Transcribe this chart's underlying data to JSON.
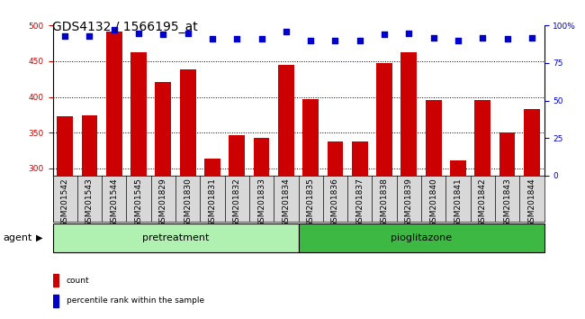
{
  "title": "GDS4132 / 1566195_at",
  "samples": [
    "GSM201542",
    "GSM201543",
    "GSM201544",
    "GSM201545",
    "GSM201829",
    "GSM201830",
    "GSM201831",
    "GSM201832",
    "GSM201833",
    "GSM201834",
    "GSM201835",
    "GSM201836",
    "GSM201837",
    "GSM201838",
    "GSM201839",
    "GSM201840",
    "GSM201841",
    "GSM201842",
    "GSM201843",
    "GSM201844"
  ],
  "counts": [
    373,
    374,
    492,
    463,
    421,
    439,
    313,
    346,
    343,
    445,
    397,
    338,
    337,
    447,
    463,
    396,
    311,
    396,
    350,
    383
  ],
  "percentiles": [
    93,
    93,
    97,
    95,
    94,
    95,
    91,
    91,
    91,
    96,
    90,
    90,
    90,
    94,
    95,
    92,
    90,
    92,
    91,
    92
  ],
  "pretreatment_count": 10,
  "pioglitazone_count": 10,
  "ylim_left": [
    290,
    500
  ],
  "ylim_right": [
    0,
    100
  ],
  "yticks_left": [
    300,
    350,
    400,
    450,
    500
  ],
  "yticks_right": [
    0,
    25,
    50,
    75,
    100
  ],
  "bar_color": "#cc0000",
  "dot_color": "#0000cc",
  "pretreatment_color": "#b0f0b0",
  "pioglitazone_color": "#3cb843",
  "xtick_bg_color": "#d8d8d8",
  "pretreatment_label": "pretreatment",
  "pioglitazone_label": "pioglitazone",
  "agent_label": "agent",
  "legend_count_label": "count",
  "legend_percentile_label": "percentile rank within the sample",
  "title_fontsize": 10,
  "tick_fontsize": 6.5,
  "label_fontsize": 8
}
